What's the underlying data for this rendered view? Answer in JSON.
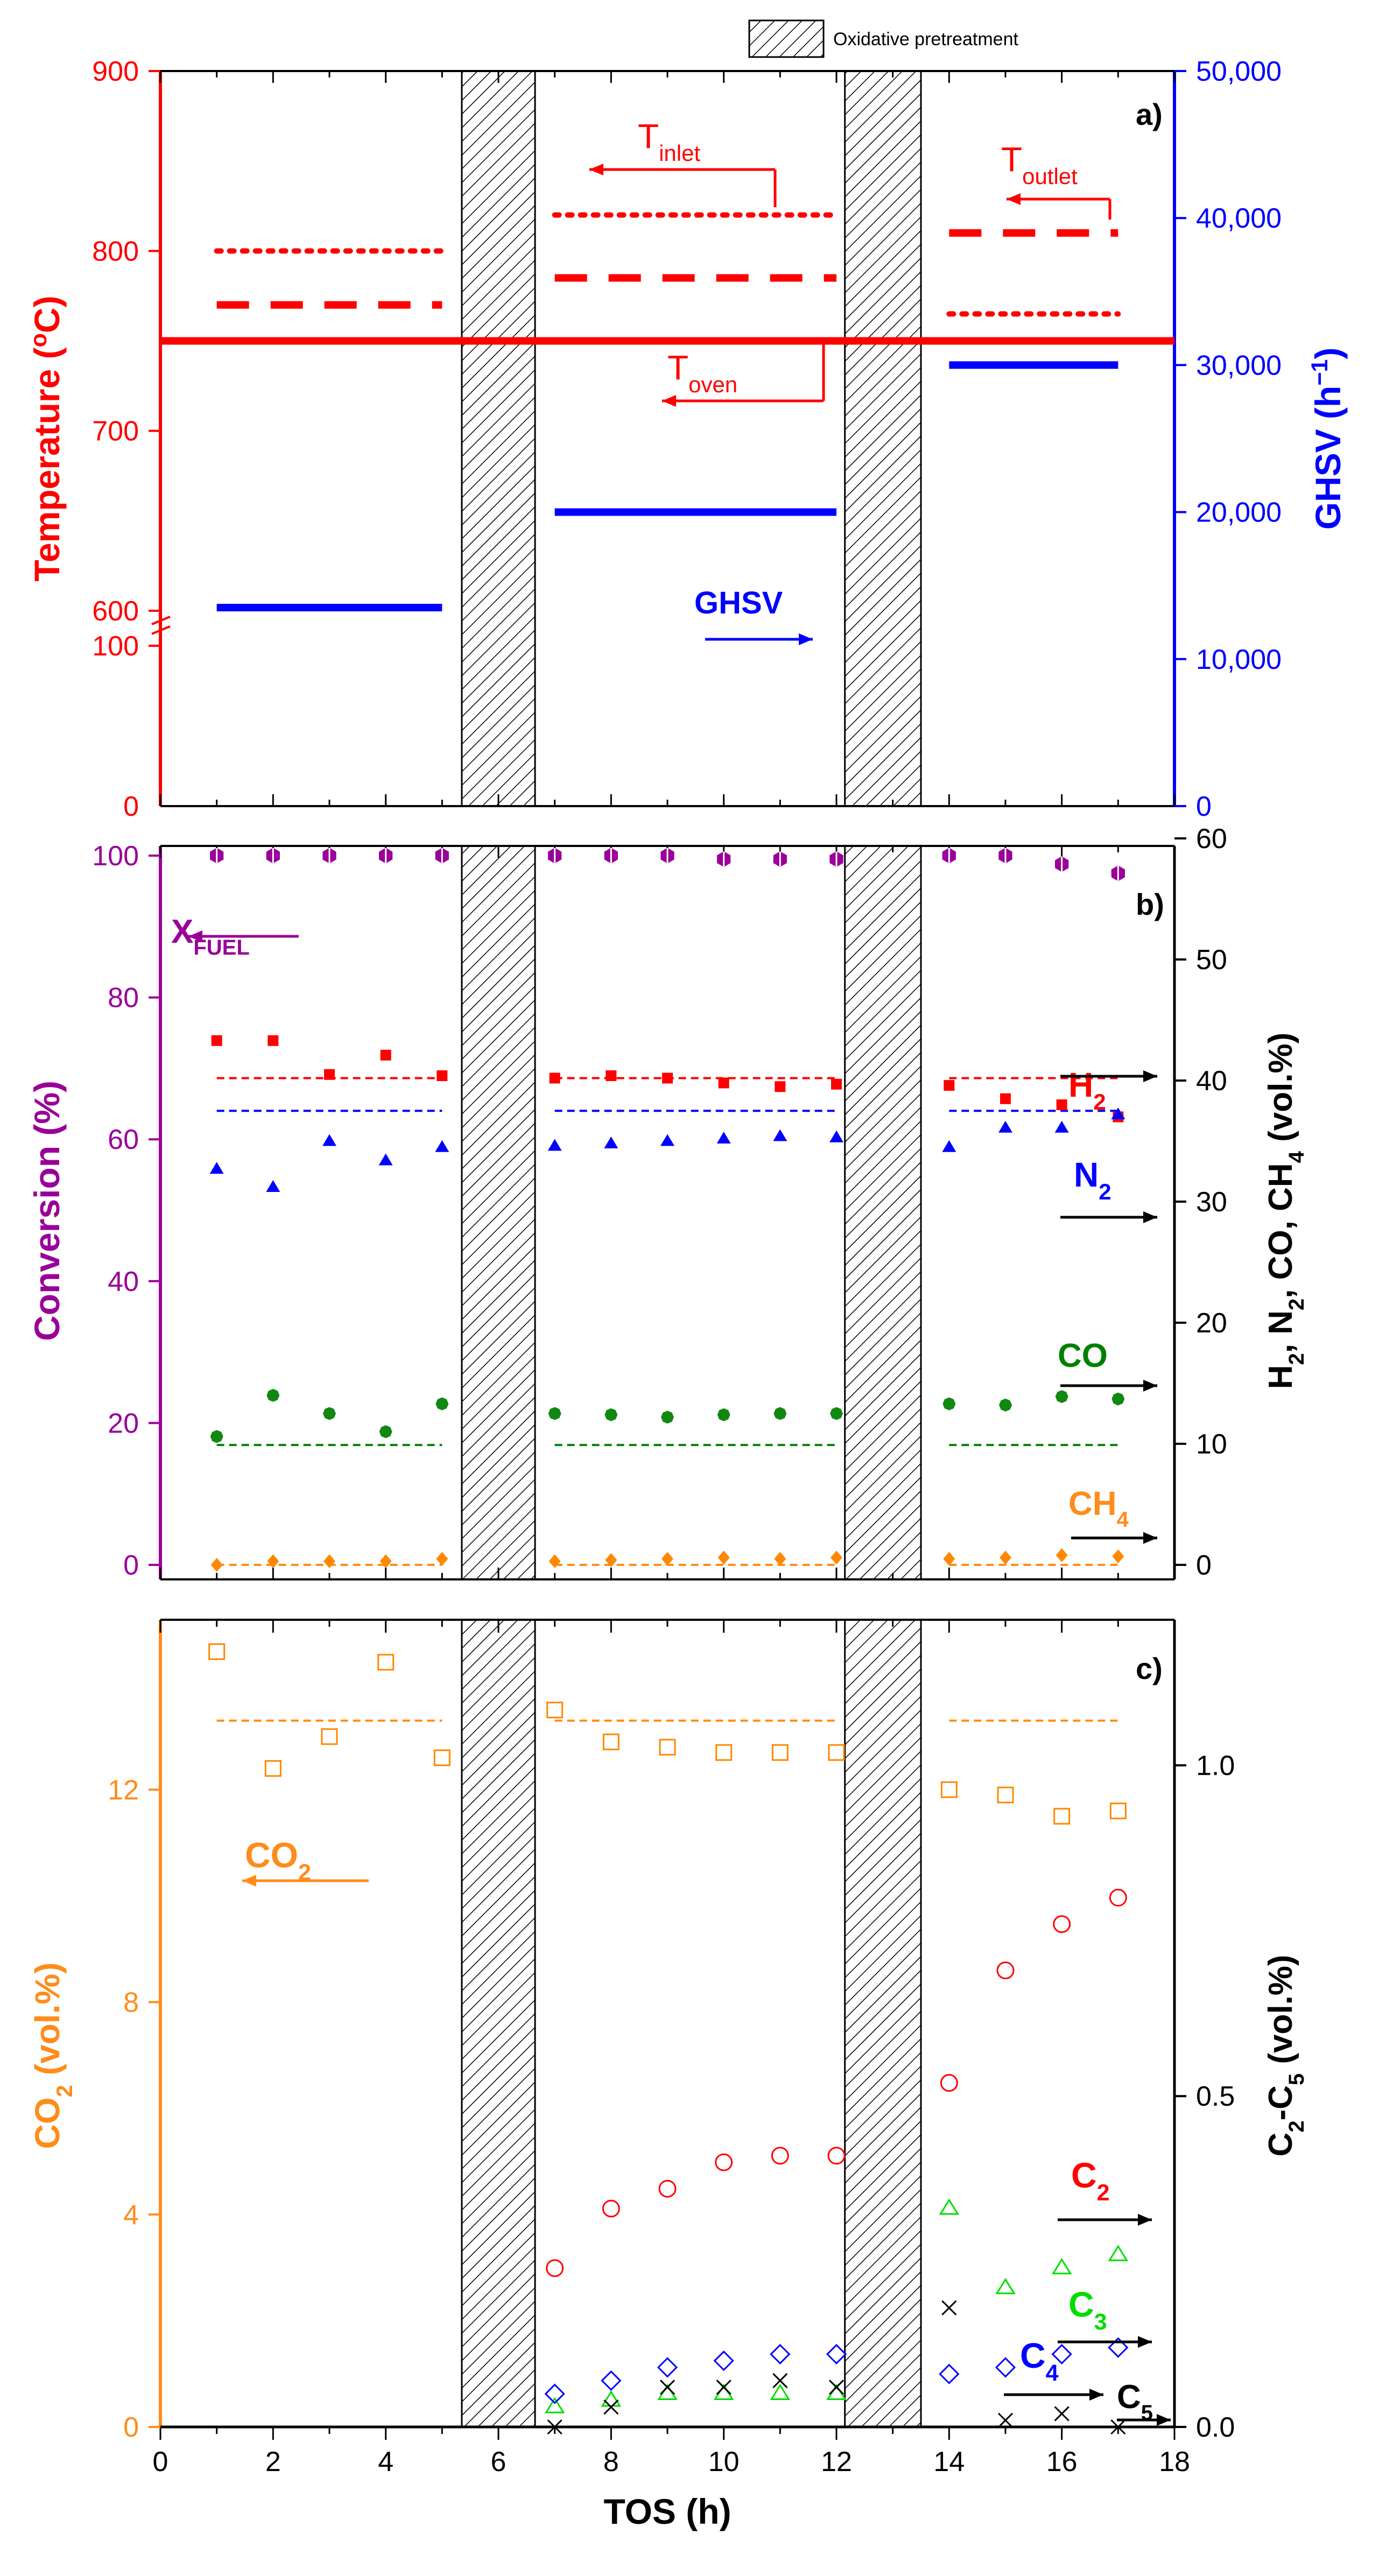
{
  "colors": {
    "red": "#ff0000",
    "blue": "#0000ff",
    "purple": "#990099",
    "green": "#008000",
    "orange": "#ff8c1a",
    "black": "#000000",
    "bright_green": "#00dd00",
    "co_green": "#118811",
    "mark_orange": "#ff8800"
  },
  "legend": {
    "label": "Oxidative pretreatment"
  },
  "pretreatment_windows": [
    [
      5.35,
      6.65
    ],
    [
      12.15,
      13.5
    ]
  ],
  "chart_data": [
    {
      "panel": "a)",
      "type": "line",
      "xlim": [
        0,
        18
      ],
      "left_axis": {
        "label": "Temperature (",
        "unit": "C)",
        "superscript": "o",
        "ticks": [
          "600",
          "700",
          "800",
          "900"
        ],
        "tick_values": [
          600,
          700,
          800,
          900
        ],
        "range": [
          600,
          900
        ],
        "break_tick": "100",
        "bottom_tick": "0"
      },
      "right_axis": {
        "label": "GHSV (h",
        "superscript": "−1",
        "close": ")",
        "ticks": [
          "0",
          "10,000",
          "20,000",
          "30,000",
          "40,000",
          "50,000"
        ],
        "tick_values": [
          0,
          10000,
          20000,
          30000,
          40000,
          50000
        ],
        "range": [
          0,
          50000
        ]
      },
      "lines": [
        {
          "name": "T_inlet",
          "style": "dotted",
          "axis": "left",
          "segments": [
            {
              "x": [
                1,
                5
              ],
              "y": 800
            },
            {
              "x": 7,
              "x2": 12,
              "y": 820
            },
            {
              "x": [
                14,
                17
              ],
              "y": 765
            }
          ]
        },
        {
          "name": "T_outlet",
          "style": "dashed",
          "axis": "left",
          "segments": [
            {
              "x": [
                1,
                5
              ],
              "y": 770
            },
            {
              "x": [
                7,
                12
              ],
              "y": 785
            },
            {
              "x": [
                14,
                17
              ],
              "y": 810
            }
          ]
        },
        {
          "name": "T_oven",
          "style": "solid",
          "axis": "left",
          "segments": [
            {
              "x": [
                0,
                18
              ],
              "y": 750
            }
          ]
        },
        {
          "name": "GHSV",
          "style": "solid",
          "axis": "right",
          "segments": [
            {
              "x": [
                1,
                5
              ],
              "y": 13500
            },
            {
              "x": [
                7,
                12
              ],
              "y": 20000
            },
            {
              "x": [
                14,
                17
              ],
              "y": 30000
            }
          ]
        }
      ],
      "annotations": [
        {
          "text": "T",
          "sub": "inlet",
          "arrow": "left"
        },
        {
          "text": "T",
          "sub": "outlet",
          "arrow": "left"
        },
        {
          "text": "T",
          "sub": "oven",
          "arrow": "left"
        },
        {
          "text": "GHSV",
          "arrow": "right"
        }
      ]
    },
    {
      "panel": "b)",
      "type": "scatter",
      "xlim": [
        0,
        18
      ],
      "left_axis": {
        "label": "Conversion (%)",
        "ticks": [
          "0",
          "20",
          "40",
          "60",
          "80",
          "100"
        ],
        "tick_values": [
          0,
          20,
          40,
          60,
          80,
          100
        ],
        "range": [
          0,
          100
        ]
      },
      "right_axis": {
        "label_parts": [
          "H",
          "2",
          ", N",
          "2",
          ", CO, CH",
          "4",
          "  (vol.%)"
        ],
        "ticks": [
          "0",
          "10",
          "20",
          "30",
          "40",
          "50",
          "60"
        ],
        "tick_values": [
          0,
          10,
          20,
          30,
          40,
          50,
          60
        ],
        "range": [
          0,
          60
        ]
      },
      "x": [
        1,
        2,
        3,
        4,
        5,
        7,
        8,
        9,
        10,
        11,
        12,
        14,
        15,
        16,
        17
      ],
      "series": [
        {
          "name": "X_FUEL",
          "axis": "left",
          "values": [
            100,
            100,
            100,
            100,
            100,
            100,
            100,
            100,
            99.5,
            99.5,
            99.5,
            100,
            100,
            98.8,
            97.5
          ]
        },
        {
          "name": "H2",
          "axis": "right",
          "values": [
            43.3,
            43.3,
            40.5,
            42.1,
            40.4,
            40.2,
            40.4,
            40.2,
            39.8,
            39.5,
            39.7,
            39.6,
            38.5,
            38.0,
            37.0
          ]
        },
        {
          "name": "N2",
          "axis": "right",
          "values": [
            32.7,
            31.2,
            35.0,
            33.4,
            34.5,
            34.6,
            34.8,
            35.0,
            35.2,
            35.4,
            35.3,
            34.5,
            36.1,
            36.1,
            37.2
          ]
        },
        {
          "name": "CO",
          "axis": "right",
          "values": [
            10.6,
            14.0,
            12.5,
            11.0,
            13.3,
            12.5,
            12.4,
            12.2,
            12.4,
            12.5,
            12.5,
            13.3,
            13.2,
            13.9,
            13.7
          ]
        },
        {
          "name": "CH4",
          "axis": "right",
          "values": [
            0.0,
            0.3,
            0.3,
            0.3,
            0.5,
            0.3,
            0.4,
            0.5,
            0.6,
            0.5,
            0.6,
            0.5,
            0.6,
            0.8,
            0.7
          ]
        }
      ],
      "dashed_levels": [
        {
          "name": "H2",
          "y": 40.2
        },
        {
          "name": "N2",
          "y": 37.5
        },
        {
          "name": "CO",
          "y": 9.9
        },
        {
          "name": "CH4",
          "y": 0.0
        }
      ],
      "labels": {
        "xfuel": "X",
        "xfuel_sub": "FUEL",
        "h2": "H",
        "h2_sub": "2",
        "n2": "N",
        "n2_sub": "2",
        "co": "CO",
        "ch4": "CH",
        "ch4_sub": "4"
      }
    },
    {
      "panel": "c)",
      "type": "scatter",
      "xlabel": "TOS (h)",
      "xlim": [
        0,
        18
      ],
      "xticks": [
        "0",
        "2",
        "4",
        "6",
        "8",
        "10",
        "12",
        "14",
        "16",
        "18"
      ],
      "xtick_values": [
        0,
        2,
        4,
        6,
        8,
        10,
        12,
        14,
        16,
        18
      ],
      "left_axis": {
        "label": "CO",
        "label_sub": "2",
        "label_end": " (vol.%)",
        "ticks": [
          "0",
          "4",
          "8",
          "12"
        ],
        "tick_values": [
          0,
          4,
          8,
          12
        ],
        "range": [
          0,
          15.2
        ]
      },
      "right_axis": {
        "label": "C",
        "label_sub1": "2",
        "label_mid": "-C",
        "label_sub2": "5",
        "label_end": " (vol.%)",
        "ticks": [
          "0.0",
          "0.5",
          "1.0"
        ],
        "tick_values": [
          0,
          0.5,
          1.0
        ],
        "range": [
          0,
          1.22
        ]
      },
      "co2_dashed_level": 13.3,
      "series": [
        {
          "name": "CO2",
          "axis": "left",
          "x": [
            1,
            2,
            3,
            4,
            5,
            7,
            8,
            9,
            10,
            11,
            12,
            14,
            15,
            16,
            17
          ],
          "values": [
            14.6,
            12.4,
            13.0,
            14.4,
            12.6,
            13.5,
            12.9,
            12.8,
            12.7,
            12.7,
            12.7,
            12.0,
            11.9,
            11.5,
            11.6
          ]
        },
        {
          "name": "C2",
          "axis": "right",
          "x": [
            7,
            8,
            9,
            10,
            11,
            12,
            14,
            15,
            16,
            17
          ],
          "values": [
            0.24,
            0.33,
            0.36,
            0.4,
            0.41,
            0.41,
            0.52,
            0.69,
            0.76,
            0.8
          ]
        },
        {
          "name": "C3",
          "axis": "right",
          "x": [
            7,
            8,
            9,
            10,
            11,
            12,
            14,
            15,
            16,
            17
          ],
          "values": [
            0.03,
            0.04,
            0.05,
            0.05,
            0.05,
            0.05,
            0.33,
            0.21,
            0.24,
            0.26
          ]
        },
        {
          "name": "C4",
          "axis": "right",
          "x": [
            7,
            8,
            9,
            10,
            11,
            12,
            14,
            15,
            16,
            17
          ],
          "values": [
            0.05,
            0.07,
            0.09,
            0.1,
            0.11,
            0.11,
            0.08,
            0.09,
            0.11,
            0.12
          ]
        },
        {
          "name": "C5",
          "axis": "right",
          "x": [
            7,
            8,
            9,
            10,
            11,
            12,
            14,
            15,
            16,
            17
          ],
          "values": [
            0.0,
            0.03,
            0.06,
            0.06,
            0.07,
            0.06,
            0.18,
            0.01,
            0.02,
            0.0
          ]
        }
      ],
      "labels": {
        "co2": "CO",
        "co2_sub": "2",
        "c2": "C",
        "c2_sub": "2",
        "c3": "C",
        "c3_sub": "3",
        "c4": "C",
        "c4_sub": "4",
        "c5": "C",
        "c5_sub": "5"
      }
    }
  ]
}
